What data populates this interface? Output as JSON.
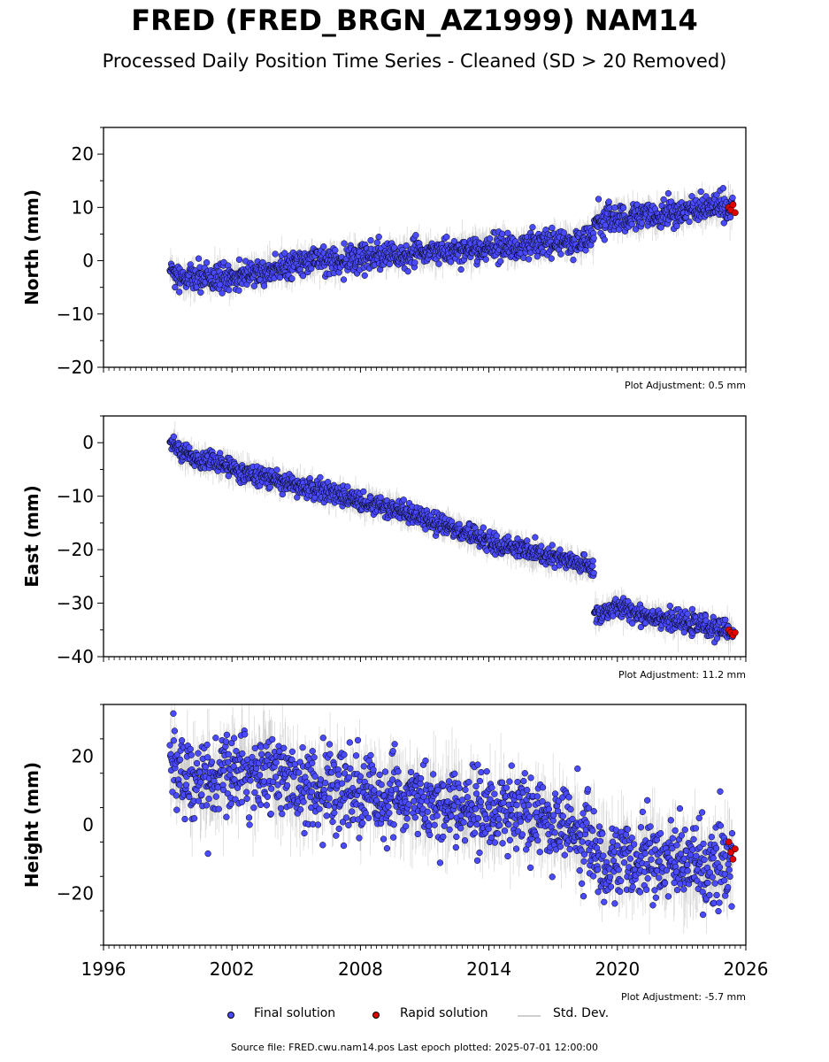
{
  "title": "FRED (FRED_BRGN_AZ1999) NAM14",
  "subtitle": "Processed Daily Position Time Series - Cleaned (SD > 20 Removed)",
  "legend": {
    "final_label": "Final solution",
    "rapid_label": "Rapid solution",
    "std_label": "Std. Dev."
  },
  "source_note": "Source file: FRED.cwu.nam14.pos  Last epoch plotted: 2025-07-01 12:00:00",
  "colors": {
    "final": "#4a4aff",
    "rapid": "#e00000",
    "std_dev": "#bbbbbb",
    "marker_edge": "#000000"
  },
  "chart_data": [
    {
      "type": "scatter",
      "ylabel": "North (mm)",
      "xlim": [
        1996,
        2026
      ],
      "ylim": [
        -20,
        25
      ],
      "yticks": [
        -20,
        -10,
        0,
        10,
        20
      ],
      "adjustment_note": "Plot Adjustment: 0.5 mm",
      "series": [
        {
          "name": "Final solution",
          "x": [
            1999.1,
            1999.5,
            2000.0,
            2000.5,
            2001.0,
            2001.5,
            2002.0,
            2002.5,
            2003.0,
            2003.5,
            2004.0,
            2004.5,
            2005.0,
            2005.5,
            2006.0,
            2006.5,
            2007.0,
            2007.5,
            2008.0,
            2008.5,
            2009.0,
            2009.5,
            2010.0,
            2010.5,
            2011.0,
            2011.5,
            2012.0,
            2012.5,
            2013.0,
            2013.5,
            2014.0,
            2014.5,
            2015.0,
            2015.5,
            2016.0,
            2016.5,
            2017.0,
            2017.5,
            2018.0,
            2018.5,
            2018.9,
            2019.2,
            2019.5,
            2019.9,
            2020.3,
            2020.7,
            2021.1,
            2021.5,
            2021.9,
            2022.3,
            2022.7,
            2023.1,
            2023.5,
            2023.9,
            2024.3,
            2024.7,
            2025.1,
            2025.4
          ],
          "y": [
            -1.5,
            -3.0,
            -3.5,
            -3.0,
            -3.5,
            -3.0,
            -3.0,
            -2.5,
            -2.5,
            -2.0,
            -1.5,
            -1.0,
            -0.5,
            0.0,
            0.0,
            0.0,
            0.0,
            0.5,
            0.5,
            1.0,
            1.0,
            1.0,
            1.0,
            1.5,
            1.5,
            1.5,
            1.5,
            2.0,
            2.0,
            2.0,
            2.5,
            2.5,
            2.5,
            2.5,
            3.0,
            3.0,
            3.5,
            3.5,
            3.5,
            4.0,
            4.5,
            7.5,
            8.0,
            8.0,
            8.0,
            8.5,
            8.5,
            8.5,
            8.5,
            9.0,
            9.0,
            9.5,
            9.5,
            9.5,
            10.0,
            10.0,
            10.0,
            10.0
          ]
        },
        {
          "name": "Rapid solution",
          "x": [
            2025.2,
            2025.3,
            2025.4,
            2025.5
          ],
          "y": [
            10.0,
            9.5,
            10.5,
            9.0
          ]
        }
      ]
    },
    {
      "type": "scatter",
      "ylabel": "East (mm)",
      "xlim": [
        1996,
        2026
      ],
      "ylim": [
        -40,
        5
      ],
      "yticks": [
        -40,
        -30,
        -20,
        -10,
        0
      ],
      "adjustment_note": "Plot Adjustment: 11.2 mm",
      "series": [
        {
          "name": "Final solution",
          "x": [
            1999.1,
            1999.5,
            2000.0,
            2000.5,
            2001.0,
            2001.5,
            2002.0,
            2002.5,
            2003.0,
            2003.5,
            2004.0,
            2004.5,
            2005.0,
            2005.5,
            2006.0,
            2006.5,
            2007.0,
            2007.5,
            2008.0,
            2008.5,
            2009.0,
            2009.5,
            2010.0,
            2010.5,
            2011.0,
            2011.5,
            2012.0,
            2012.5,
            2013.0,
            2013.5,
            2014.0,
            2014.5,
            2015.0,
            2015.5,
            2016.0,
            2016.5,
            2017.0,
            2017.5,
            2018.0,
            2018.5,
            2018.9,
            2019.2,
            2019.5,
            2019.9,
            2020.3,
            2020.7,
            2021.1,
            2021.5,
            2021.9,
            2022.3,
            2022.7,
            2023.1,
            2023.5,
            2023.9,
            2024.3,
            2024.7,
            2025.1,
            2025.4
          ],
          "y": [
            0.0,
            -1.0,
            -2.5,
            -3.0,
            -3.5,
            -4.0,
            -4.5,
            -5.5,
            -6.0,
            -6.5,
            -7.0,
            -7.5,
            -8.0,
            -8.5,
            -9.0,
            -9.5,
            -10.0,
            -10.5,
            -11.0,
            -11.5,
            -12.0,
            -12.5,
            -13.0,
            -13.5,
            -14.5,
            -15.0,
            -15.5,
            -16.5,
            -17.0,
            -17.5,
            -18.5,
            -19.0,
            -19.5,
            -20.0,
            -20.5,
            -21.0,
            -21.5,
            -22.0,
            -22.5,
            -23.0,
            -23.5,
            -32.0,
            -31.5,
            -31.0,
            -31.0,
            -31.5,
            -32.0,
            -32.5,
            -32.5,
            -33.0,
            -33.5,
            -33.5,
            -34.0,
            -34.0,
            -34.5,
            -35.0,
            -35.0,
            -35.5
          ]
        },
        {
          "name": "Rapid solution",
          "x": [
            2025.2,
            2025.3,
            2025.4,
            2025.5
          ],
          "y": [
            -35.0,
            -35.5,
            -36.0,
            -35.5
          ]
        }
      ]
    },
    {
      "type": "scatter",
      "ylabel": "Height (mm)",
      "xlim": [
        1996,
        2026
      ],
      "ylim": [
        -35,
        35
      ],
      "yticks": [
        -20,
        0,
        20
      ],
      "xticks": [
        1996,
        2002,
        2008,
        2014,
        2020,
        2026
      ],
      "adjustment_note": "Plot Adjustment: -5.7 mm",
      "series": [
        {
          "name": "Final solution",
          "x": [
            1999.1,
            1999.5,
            2000.0,
            2000.5,
            2001.0,
            2001.5,
            2002.0,
            2002.5,
            2003.0,
            2003.5,
            2004.0,
            2004.5,
            2005.0,
            2005.5,
            2006.0,
            2006.5,
            2007.0,
            2007.5,
            2008.0,
            2008.5,
            2009.0,
            2009.5,
            2010.0,
            2010.5,
            2011.0,
            2011.5,
            2012.0,
            2012.5,
            2013.0,
            2013.5,
            2014.0,
            2014.5,
            2015.0,
            2015.5,
            2016.0,
            2016.5,
            2017.0,
            2017.5,
            2018.0,
            2018.5,
            2018.9,
            2019.2,
            2019.5,
            2019.9,
            2020.3,
            2020.7,
            2021.1,
            2021.5,
            2021.9,
            2022.3,
            2022.7,
            2023.1,
            2023.5,
            2023.9,
            2024.3,
            2024.7,
            2025.1,
            2025.4
          ],
          "y": [
            18,
            15,
            12,
            14,
            10,
            16,
            13,
            17,
            12,
            18,
            14,
            16,
            8,
            12,
            10,
            13,
            9,
            11,
            8,
            10,
            7,
            9,
            6,
            8,
            5,
            7,
            4,
            6,
            5,
            4,
            3,
            5,
            2,
            4,
            1,
            3,
            0,
            1,
            -2,
            -3,
            -5,
            -12,
            -10,
            -11,
            -9,
            -12,
            -8,
            -10,
            -9,
            -11,
            -10,
            -12,
            -11,
            -13,
            -12,
            -11,
            -12,
            -10
          ]
        },
        {
          "name": "Rapid solution",
          "x": [
            2025.2,
            2025.3,
            2025.4,
            2025.5
          ],
          "y": [
            -5,
            -8,
            -10,
            -7
          ]
        }
      ]
    }
  ]
}
